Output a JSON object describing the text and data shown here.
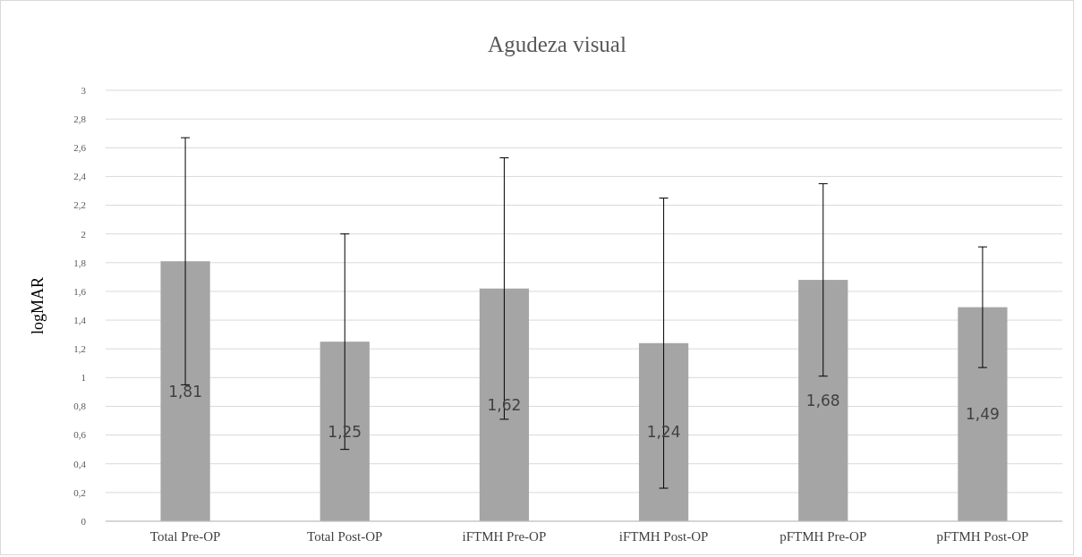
{
  "chart_data": {
    "type": "bar",
    "title": "Agudeza visual",
    "ylabel": "logMAR",
    "categories": [
      "Total Pre-OP",
      "Total Post-OP",
      "iFTMH Pre-OP",
      "iFTMH Post-OP",
      "pFTMH Pre-OP",
      "pFTMH Post-OP"
    ],
    "values": [
      1.81,
      1.25,
      1.62,
      1.24,
      1.68,
      1.49
    ],
    "value_labels": [
      "1,81",
      "1,25",
      "1,62",
      "1,24",
      "1,68",
      "1,49"
    ],
    "errors": [
      0.86,
      0.75,
      0.91,
      1.01,
      0.67,
      0.42
    ],
    "color": "#a5a5a5",
    "ylim": [
      0,
      3
    ],
    "yticks": [
      0,
      {
        "value": 0.2,
        "label": "0,2"
      },
      {
        "value": 0.4,
        "label": "0,4"
      },
      {
        "value": 0.6,
        "label": "0,6"
      },
      {
        "value": 0.8,
        "label": "0,8"
      },
      1,
      {
        "value": 1.2,
        "label": "1,2"
      },
      {
        "value": 1.4,
        "label": "1,4"
      },
      {
        "value": 1.6,
        "label": "1,6"
      },
      {
        "value": 1.8,
        "label": "1,8"
      },
      2,
      {
        "value": 2.2,
        "label": "2,2"
      },
      {
        "value": 2.4,
        "label": "2,4"
      },
      {
        "value": 2.6,
        "label": "2,6"
      },
      {
        "value": 2.8,
        "label": "2,8"
      },
      3
    ],
    "grid": true
  }
}
